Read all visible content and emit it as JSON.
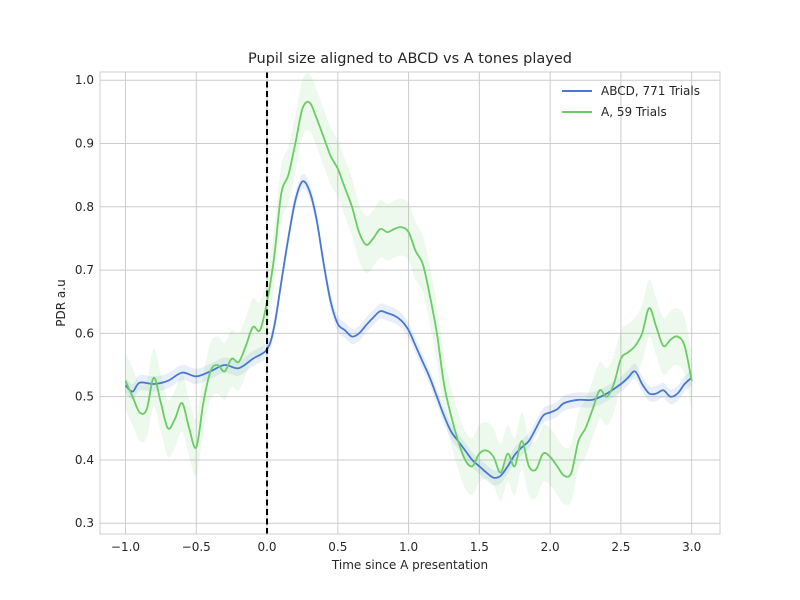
{
  "chart_data": {
    "type": "line",
    "title": "Pupil size aligned to ABCD vs A tones played",
    "xlabel": "Time since A presentation",
    "ylabel": "PDR a.u",
    "xlim": [
      -1.18,
      3.2
    ],
    "ylim": [
      0.283,
      1.013
    ],
    "xticks": [
      -1.0,
      -0.5,
      0.0,
      0.5,
      1.0,
      1.5,
      2.0,
      2.5,
      3.0
    ],
    "xtick_labels": [
      "−1.0",
      "−0.5",
      "0.0",
      "0.5",
      "1.0",
      "1.5",
      "2.0",
      "2.5",
      "3.0"
    ],
    "yticks": [
      0.3,
      0.4,
      0.5,
      0.6,
      0.7,
      0.8,
      0.9,
      1.0
    ],
    "ytick_labels": [
      "0.3",
      "0.4",
      "0.5",
      "0.6",
      "0.7",
      "0.8",
      "0.9",
      "1.0"
    ],
    "grid": true,
    "legend_position": "top-right",
    "vline": {
      "x": 0.0,
      "style": "dashed",
      "color": "#000000"
    },
    "series": [
      {
        "name": "ABCD, 771 Trials",
        "color": "#4878d0",
        "band_color": "#4878d0",
        "x": [
          -1.0,
          -0.95,
          -0.9,
          -0.8,
          -0.7,
          -0.6,
          -0.5,
          -0.4,
          -0.3,
          -0.2,
          -0.1,
          0.0,
          0.05,
          0.1,
          0.15,
          0.2,
          0.25,
          0.3,
          0.35,
          0.4,
          0.45,
          0.5,
          0.55,
          0.6,
          0.65,
          0.7,
          0.75,
          0.8,
          0.85,
          0.9,
          0.95,
          1.0,
          1.05,
          1.1,
          1.15,
          1.2,
          1.25,
          1.3,
          1.35,
          1.4,
          1.45,
          1.5,
          1.55,
          1.6,
          1.65,
          1.7,
          1.75,
          1.8,
          1.85,
          1.9,
          1.95,
          2.0,
          2.05,
          2.1,
          2.2,
          2.3,
          2.4,
          2.5,
          2.55,
          2.6,
          2.65,
          2.7,
          2.75,
          2.8,
          2.85,
          2.9,
          2.95,
          3.0
        ],
        "y": [
          0.518,
          0.508,
          0.522,
          0.52,
          0.525,
          0.538,
          0.532,
          0.54,
          0.55,
          0.545,
          0.56,
          0.575,
          0.61,
          0.68,
          0.75,
          0.81,
          0.84,
          0.825,
          0.78,
          0.71,
          0.65,
          0.615,
          0.605,
          0.595,
          0.6,
          0.613,
          0.625,
          0.635,
          0.632,
          0.628,
          0.62,
          0.605,
          0.58,
          0.555,
          0.53,
          0.5,
          0.47,
          0.445,
          0.43,
          0.415,
          0.4,
          0.39,
          0.38,
          0.372,
          0.375,
          0.39,
          0.408,
          0.42,
          0.43,
          0.45,
          0.47,
          0.475,
          0.48,
          0.49,
          0.495,
          0.495,
          0.505,
          0.52,
          0.53,
          0.54,
          0.52,
          0.505,
          0.505,
          0.51,
          0.5,
          0.505,
          0.52,
          0.53
        ],
        "band": 0.012
      },
      {
        "name": "A, 59 Trials",
        "color": "#6acc64",
        "band_color": "#6acc64",
        "x": [
          -1.0,
          -0.95,
          -0.9,
          -0.85,
          -0.8,
          -0.75,
          -0.7,
          -0.65,
          -0.6,
          -0.55,
          -0.5,
          -0.45,
          -0.4,
          -0.35,
          -0.3,
          -0.25,
          -0.2,
          -0.15,
          -0.1,
          -0.05,
          0.0,
          0.05,
          0.1,
          0.15,
          0.2,
          0.25,
          0.3,
          0.35,
          0.4,
          0.45,
          0.5,
          0.55,
          0.6,
          0.65,
          0.7,
          0.75,
          0.8,
          0.85,
          0.9,
          0.95,
          1.0,
          1.05,
          1.1,
          1.15,
          1.2,
          1.25,
          1.3,
          1.35,
          1.4,
          1.45,
          1.5,
          1.55,
          1.6,
          1.65,
          1.7,
          1.75,
          1.8,
          1.85,
          1.9,
          1.95,
          2.0,
          2.05,
          2.1,
          2.15,
          2.2,
          2.25,
          2.3,
          2.35,
          2.4,
          2.45,
          2.5,
          2.55,
          2.6,
          2.65,
          2.7,
          2.75,
          2.8,
          2.85,
          2.9,
          2.95,
          3.0
        ],
        "y": [
          0.525,
          0.5,
          0.475,
          0.48,
          0.53,
          0.49,
          0.45,
          0.465,
          0.49,
          0.45,
          0.42,
          0.49,
          0.54,
          0.55,
          0.54,
          0.56,
          0.555,
          0.58,
          0.61,
          0.605,
          0.65,
          0.72,
          0.82,
          0.85,
          0.9,
          0.955,
          0.965,
          0.94,
          0.91,
          0.88,
          0.86,
          0.83,
          0.8,
          0.76,
          0.74,
          0.75,
          0.765,
          0.76,
          0.765,
          0.768,
          0.76,
          0.73,
          0.71,
          0.66,
          0.6,
          0.52,
          0.47,
          0.43,
          0.4,
          0.39,
          0.41,
          0.415,
          0.405,
          0.38,
          0.41,
          0.39,
          0.43,
          0.39,
          0.385,
          0.41,
          0.405,
          0.39,
          0.375,
          0.38,
          0.43,
          0.45,
          0.48,
          0.51,
          0.5,
          0.52,
          0.56,
          0.57,
          0.58,
          0.6,
          0.64,
          0.61,
          0.58,
          0.59,
          0.595,
          0.58,
          0.525
        ],
        "band": 0.045
      }
    ]
  }
}
